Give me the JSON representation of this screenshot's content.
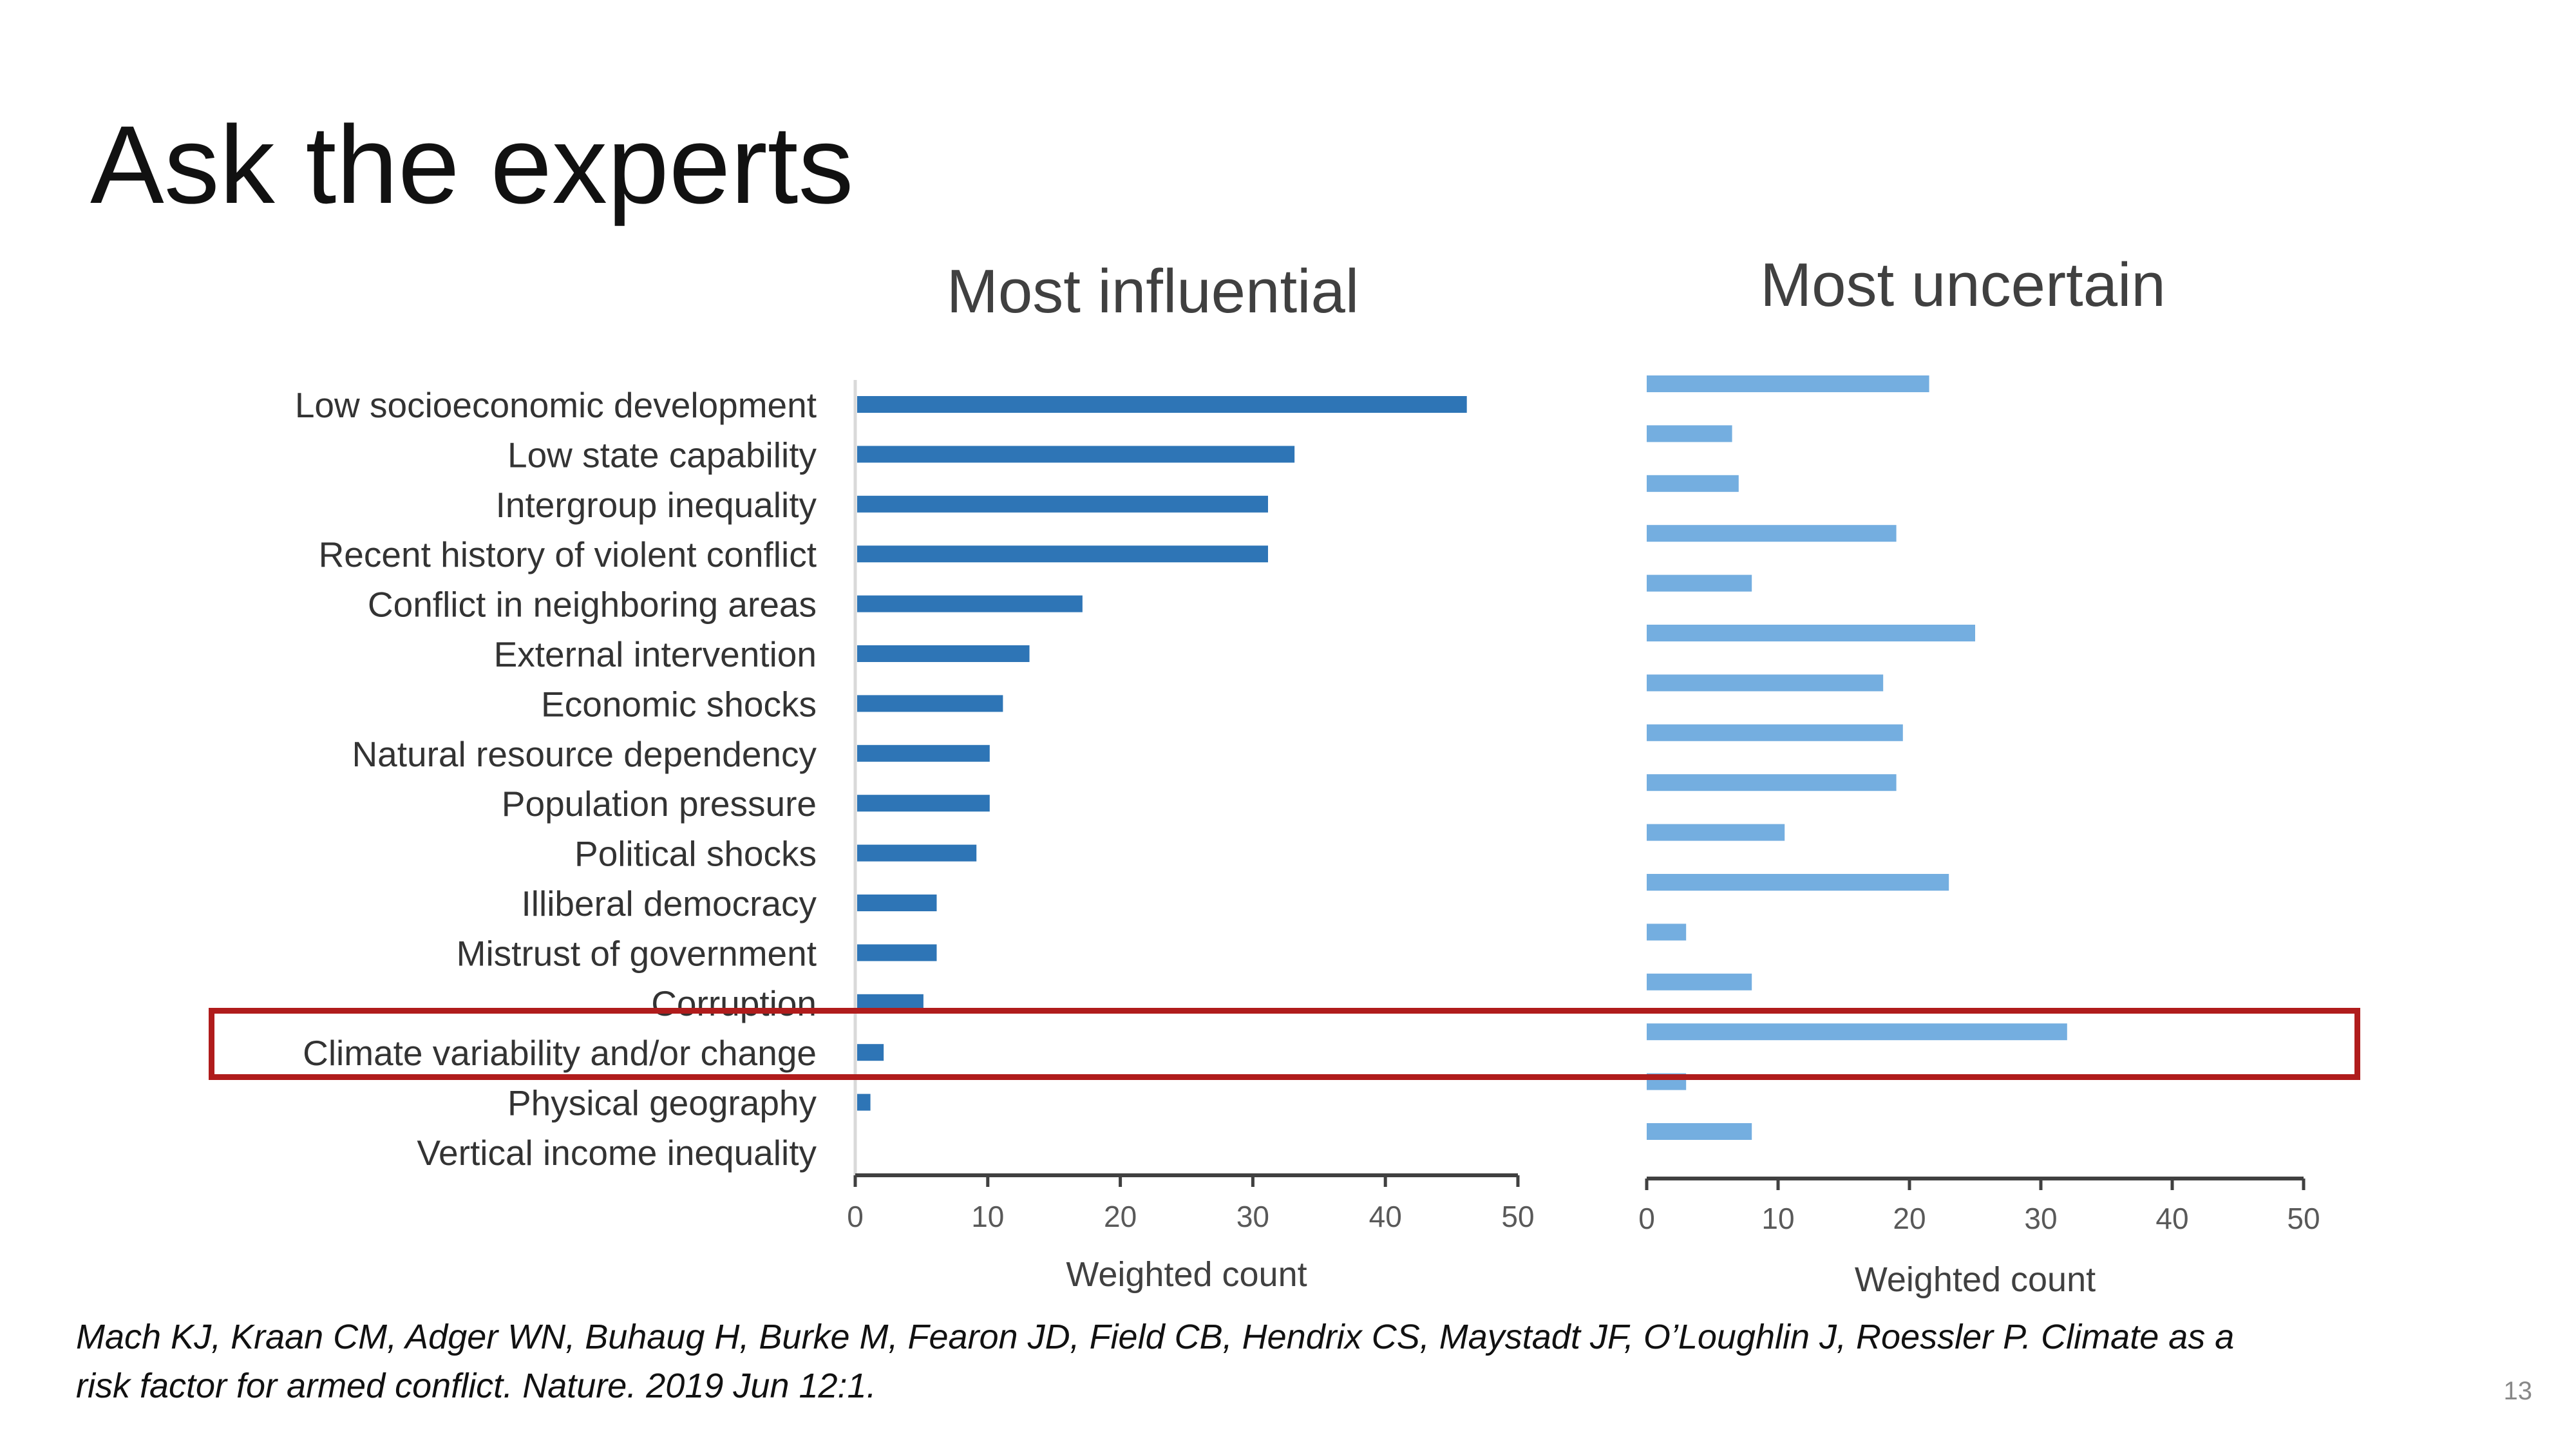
{
  "slide": {
    "title": "Ask the experts",
    "citation_line1": "Mach KJ, Kraan CM, Adger WN, Buhaug H, Burke M, Fearon JD, Field CB, Hendrix CS, Maystadt JF, O’Loughlin J, Roessler P. Climate as a",
    "citation_line2": "risk factor for armed conflict. Nature. 2019 Jun 12:1.",
    "page_number": "13"
  },
  "colors": {
    "influential_bar": "#2e75b6",
    "uncertain_bar": "#74aee0",
    "axis": "#404040",
    "highlight": "#b01c1c"
  },
  "highlight": {
    "category": "Climate variability and/or change"
  },
  "chart_data": [
    {
      "type": "bar",
      "orientation": "horizontal",
      "title": "Most influential",
      "xlabel": "Weighted count",
      "ylabel": "",
      "xlim": [
        0,
        50
      ],
      "ticks": [
        0,
        10,
        20,
        30,
        40,
        50
      ],
      "grid": false,
      "categories": [
        "Low socioeconomic development",
        "Low state capability",
        "Intergroup inequality",
        "Recent history of violent conflict",
        "Conflict in neighboring areas",
        "External intervention",
        "Economic shocks",
        "Natural resource dependency",
        "Population pressure",
        "Political shocks",
        "Illiberal democracy",
        "Mistrust of government",
        "Corruption",
        "Climate variability and/or change",
        "Physical geography",
        "Vertical income inequality"
      ],
      "values": [
        46,
        33,
        31,
        31,
        17,
        13,
        11,
        10,
        10,
        9,
        6,
        6,
        5,
        2,
        1,
        0
      ]
    },
    {
      "type": "bar",
      "orientation": "horizontal",
      "title": "Most uncertain",
      "xlabel": "Weighted count",
      "ylabel": "",
      "xlim": [
        0,
        50
      ],
      "ticks": [
        0,
        10,
        20,
        30,
        40,
        50
      ],
      "grid": false,
      "values": [
        21.5,
        6.5,
        7,
        19,
        8,
        25,
        18,
        19.5,
        19,
        10.5,
        23,
        3,
        8,
        32,
        3,
        8
      ]
    }
  ]
}
